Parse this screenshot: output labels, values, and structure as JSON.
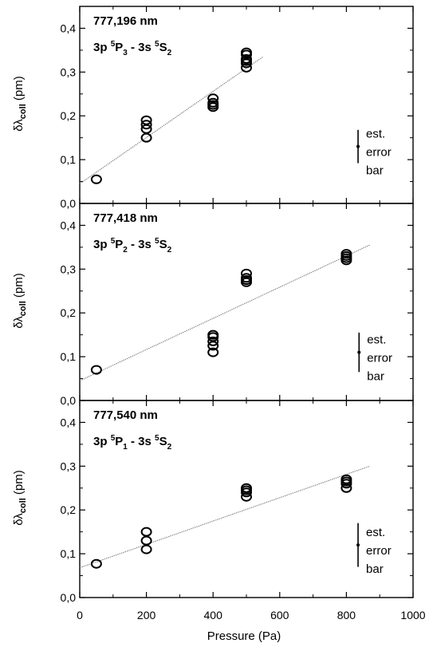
{
  "xaxis": {
    "label": "Pressure (Pa)",
    "lim": [
      0,
      1000
    ],
    "ticks": [
      0,
      200,
      400,
      600,
      800,
      1000
    ],
    "tick_labels": [
      "0",
      "200",
      "400",
      "600",
      "800",
      "1000"
    ]
  },
  "ylabel": {
    "main": "δλ",
    "sub": "coll",
    "unit": " (pm)"
  },
  "error_bar_text": [
    "est.",
    "error",
    "bar"
  ],
  "colors": {
    "axes": "#000000",
    "markers": "#000000",
    "fit": "#777777"
  },
  "chart_data": [
    {
      "type": "scatter",
      "title": "777,196 nm",
      "transition": {
        "p": "3p",
        "upper_sup": "5",
        "upper": "P",
        "upper_sub": "3",
        "dash": "-",
        "s": "3s",
        "lower_sup": "5",
        "lower": "S",
        "lower_sub": "2"
      },
      "ylim": [
        0,
        0.45
      ],
      "yticks": [
        0,
        0.1,
        0.2,
        0.3,
        0.4
      ],
      "ytick_labels": [
        "0,0",
        "0,1",
        "0,2",
        "0,3",
        "0,4"
      ],
      "series": [
        {
          "x": [
            50,
            200,
            200,
            200,
            200,
            400,
            400,
            400,
            400,
            500,
            500,
            500,
            500,
            500,
            500
          ],
          "y": [
            0.055,
            0.15,
            0.17,
            0.18,
            0.19,
            0.22,
            0.225,
            0.23,
            0.24,
            0.31,
            0.32,
            0.325,
            0.33,
            0.34,
            0.345
          ]
        }
      ],
      "fit": {
        "x": [
          0,
          550
        ],
        "y": [
          0.045,
          0.335
        ]
      },
      "error_bar": {
        "x": 835,
        "y": 0.13,
        "half": 0.038
      }
    },
    {
      "type": "scatter",
      "title": "777,418 nm",
      "transition": {
        "p": "3p",
        "upper_sup": "5",
        "upper": "P",
        "upper_sub": "2",
        "dash": "-",
        "s": "3s",
        "lower_sup": "5",
        "lower": "S",
        "lower_sub": "2"
      },
      "ylim": [
        0,
        0.45
      ],
      "yticks": [
        0,
        0.1,
        0.2,
        0.3,
        0.4
      ],
      "ytick_labels": [
        "0,0",
        "0,1",
        "0,2",
        "0,3",
        "0,4"
      ],
      "series": [
        {
          "x": [
            50,
            400,
            400,
            400,
            400,
            400,
            500,
            500,
            500,
            500,
            800,
            800,
            800,
            800
          ],
          "y": [
            0.07,
            0.11,
            0.125,
            0.135,
            0.145,
            0.15,
            0.27,
            0.275,
            0.28,
            0.29,
            0.32,
            0.325,
            0.33,
            0.335
          ]
        }
      ],
      "fit": {
        "x": [
          0,
          870
        ],
        "y": [
          0.045,
          0.355
        ]
      },
      "error_bar": {
        "x": 838,
        "y": 0.11,
        "half": 0.045
      }
    },
    {
      "type": "scatter",
      "title": "777,540 nm",
      "transition": {
        "p": "3p",
        "upper_sup": "5",
        "upper": "P",
        "upper_sub": "1",
        "dash": "-",
        "s": "3s",
        "lower_sup": "5",
        "lower": "S",
        "lower_sub": "2"
      },
      "ylim": [
        0,
        0.45
      ],
      "yticks": [
        0,
        0.1,
        0.2,
        0.3,
        0.4
      ],
      "ytick_labels": [
        "0,0",
        "0,1",
        "0,2",
        "0,3",
        "0,4"
      ],
      "series": [
        {
          "x": [
            50,
            200,
            200,
            200,
            500,
            500,
            500,
            500,
            800,
            800,
            800,
            800
          ],
          "y": [
            0.077,
            0.11,
            0.13,
            0.15,
            0.23,
            0.24,
            0.245,
            0.25,
            0.25,
            0.26,
            0.265,
            0.27
          ]
        }
      ],
      "fit": {
        "x": [
          0,
          870
        ],
        "y": [
          0.068,
          0.3
        ]
      },
      "error_bar": {
        "x": 835,
        "y": 0.12,
        "half": 0.05
      }
    }
  ]
}
